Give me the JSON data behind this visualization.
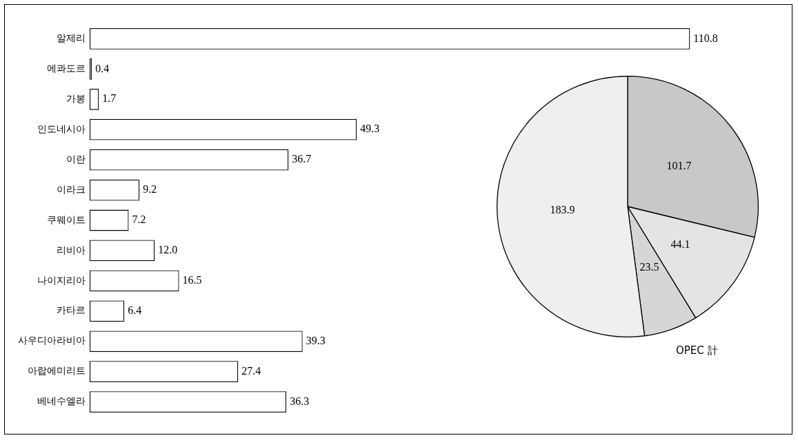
{
  "chart_data": [
    {
      "type": "bar",
      "orientation": "horizontal",
      "categories": [
        "알제리",
        "에콰도르",
        "가봉",
        "인도네시아",
        "이란",
        "이라크",
        "쿠웨이트",
        "리비아",
        "나이지리아",
        "카타르",
        "사우디아라비아",
        "아랍에미리트",
        "베네수엘라"
      ],
      "values": [
        110.8,
        0.4,
        1.7,
        49.3,
        36.7,
        9.2,
        7.2,
        12.0,
        16.5,
        6.4,
        39.3,
        27.4,
        36.3
      ],
      "value_labels": [
        "110.8",
        "0.4",
        "1.7",
        "49.3",
        "36.7",
        "9.2",
        "7.2",
        "12.0",
        "16.5",
        "6.4",
        "39.3",
        "27.4",
        "36.3"
      ],
      "color": "#ffffff",
      "legend": false
    },
    {
      "type": "pie",
      "categories": [
        null,
        null,
        null,
        null
      ],
      "values": [
        101.7,
        44.1,
        23.5,
        183.9
      ],
      "colors": [
        "#c8c8c8",
        "#e4e4e4",
        "#d6d6d6",
        "#efefef"
      ],
      "data_labels": true,
      "legend": false,
      "annotations": [
        "OPEC 計"
      ]
    }
  ]
}
